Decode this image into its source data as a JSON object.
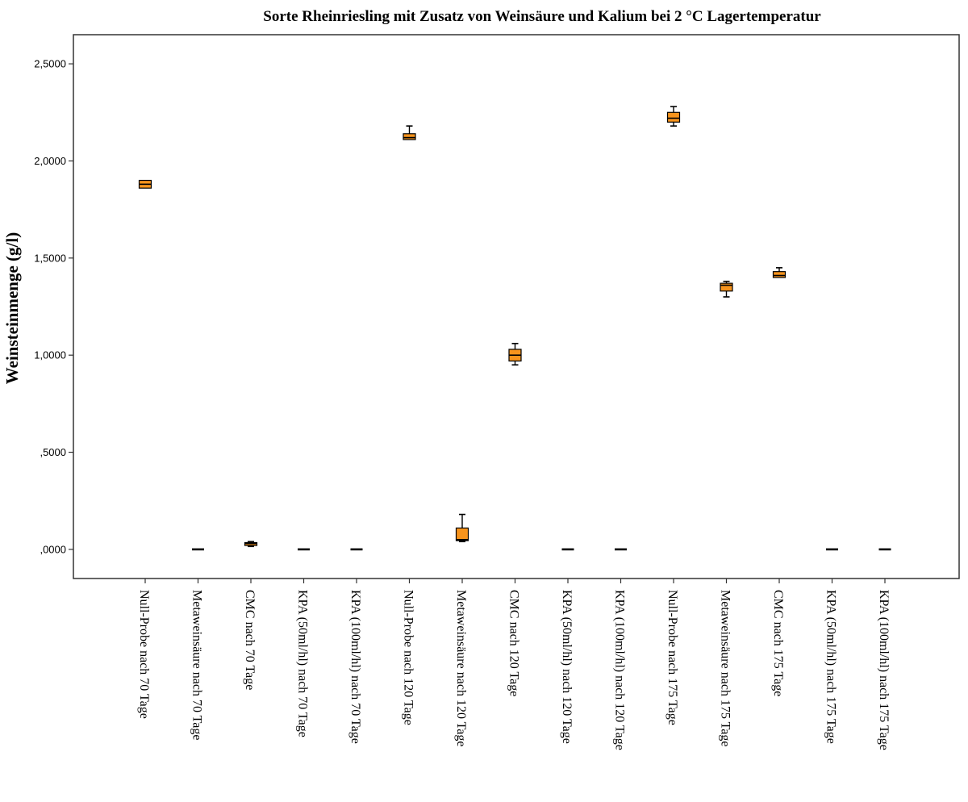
{
  "chart_data": {
    "type": "box",
    "title": "Sorte Rheinriesling mit Zusatz von Weinsäure und Kalium bei 2 °C Lagertemperatur",
    "xlabel": "",
    "ylabel": "Weinsteinmenge (g/l)",
    "ylim": [
      -0.15,
      2.65
    ],
    "yticks": [
      {
        "value": 0.0,
        "label": ",0000"
      },
      {
        "value": 0.5,
        "label": ",5000"
      },
      {
        "value": 1.0,
        "label": "1,0000"
      },
      {
        "value": 1.5,
        "label": "1,5000"
      },
      {
        "value": 2.0,
        "label": "2,0000"
      },
      {
        "value": 2.5,
        "label": "2,5000"
      }
    ],
    "grid": false,
    "box_color": "#f7941d",
    "categories": [
      "Null-Probe nach 70 Tage",
      "Metaweinsäure nach 70 Tage",
      "CMC nach 70 Tage",
      "KPA (50ml/hl) nach 70 Tage",
      "KPA (100ml/hl) nach 70 Tage",
      "Null-Probe nach 120 Tage",
      "Metaweinsäure nach 120 Tage",
      "CMC nach 120 Tage",
      "KPA (50ml/hl) nach 120 Tage",
      "KPA (100ml/hl) nach 120 Tage",
      "Null-Probe nach 175 Tage",
      "Metaweinsäure nach 175 Tage",
      "CMC nach 175 Tage",
      "KPA (50ml/hl) nach 175 Tage",
      "KPA (100ml/hl) nach 175 Tage"
    ],
    "boxes": [
      {
        "min": 1.86,
        "q1": 1.86,
        "median": 1.88,
        "q3": 1.9,
        "max": 1.9
      },
      {
        "min": 0.0,
        "q1": 0.0,
        "median": 0.0,
        "q3": 0.0,
        "max": 0.0
      },
      {
        "min": 0.015,
        "q1": 0.02,
        "median": 0.03,
        "q3": 0.035,
        "max": 0.04
      },
      {
        "min": 0.0,
        "q1": 0.0,
        "median": 0.0,
        "q3": 0.0,
        "max": 0.0
      },
      {
        "min": 0.0,
        "q1": 0.0,
        "median": 0.0,
        "q3": 0.0,
        "max": 0.0
      },
      {
        "min": 2.11,
        "q1": 2.11,
        "median": 2.12,
        "q3": 2.14,
        "max": 2.18
      },
      {
        "min": 0.04,
        "q1": 0.045,
        "median": 0.05,
        "q3": 0.11,
        "max": 0.18
      },
      {
        "min": 0.95,
        "q1": 0.97,
        "median": 1.0,
        "q3": 1.03,
        "max": 1.06
      },
      {
        "min": 0.0,
        "q1": 0.0,
        "median": 0.0,
        "q3": 0.0,
        "max": 0.0
      },
      {
        "min": 0.0,
        "q1": 0.0,
        "median": 0.0,
        "q3": 0.0,
        "max": 0.0
      },
      {
        "min": 2.18,
        "q1": 2.2,
        "median": 2.22,
        "q3": 2.25,
        "max": 2.28
      },
      {
        "min": 1.3,
        "q1": 1.33,
        "median": 1.36,
        "q3": 1.37,
        "max": 1.38
      },
      {
        "min": 1.4,
        "q1": 1.4,
        "median": 1.41,
        "q3": 1.43,
        "max": 1.45
      },
      {
        "min": 0.0,
        "q1": 0.0,
        "median": 0.0,
        "q3": 0.0,
        "max": 0.0
      },
      {
        "min": 0.0,
        "q1": 0.0,
        "median": 0.0,
        "q3": 0.0,
        "max": 0.0
      }
    ]
  }
}
